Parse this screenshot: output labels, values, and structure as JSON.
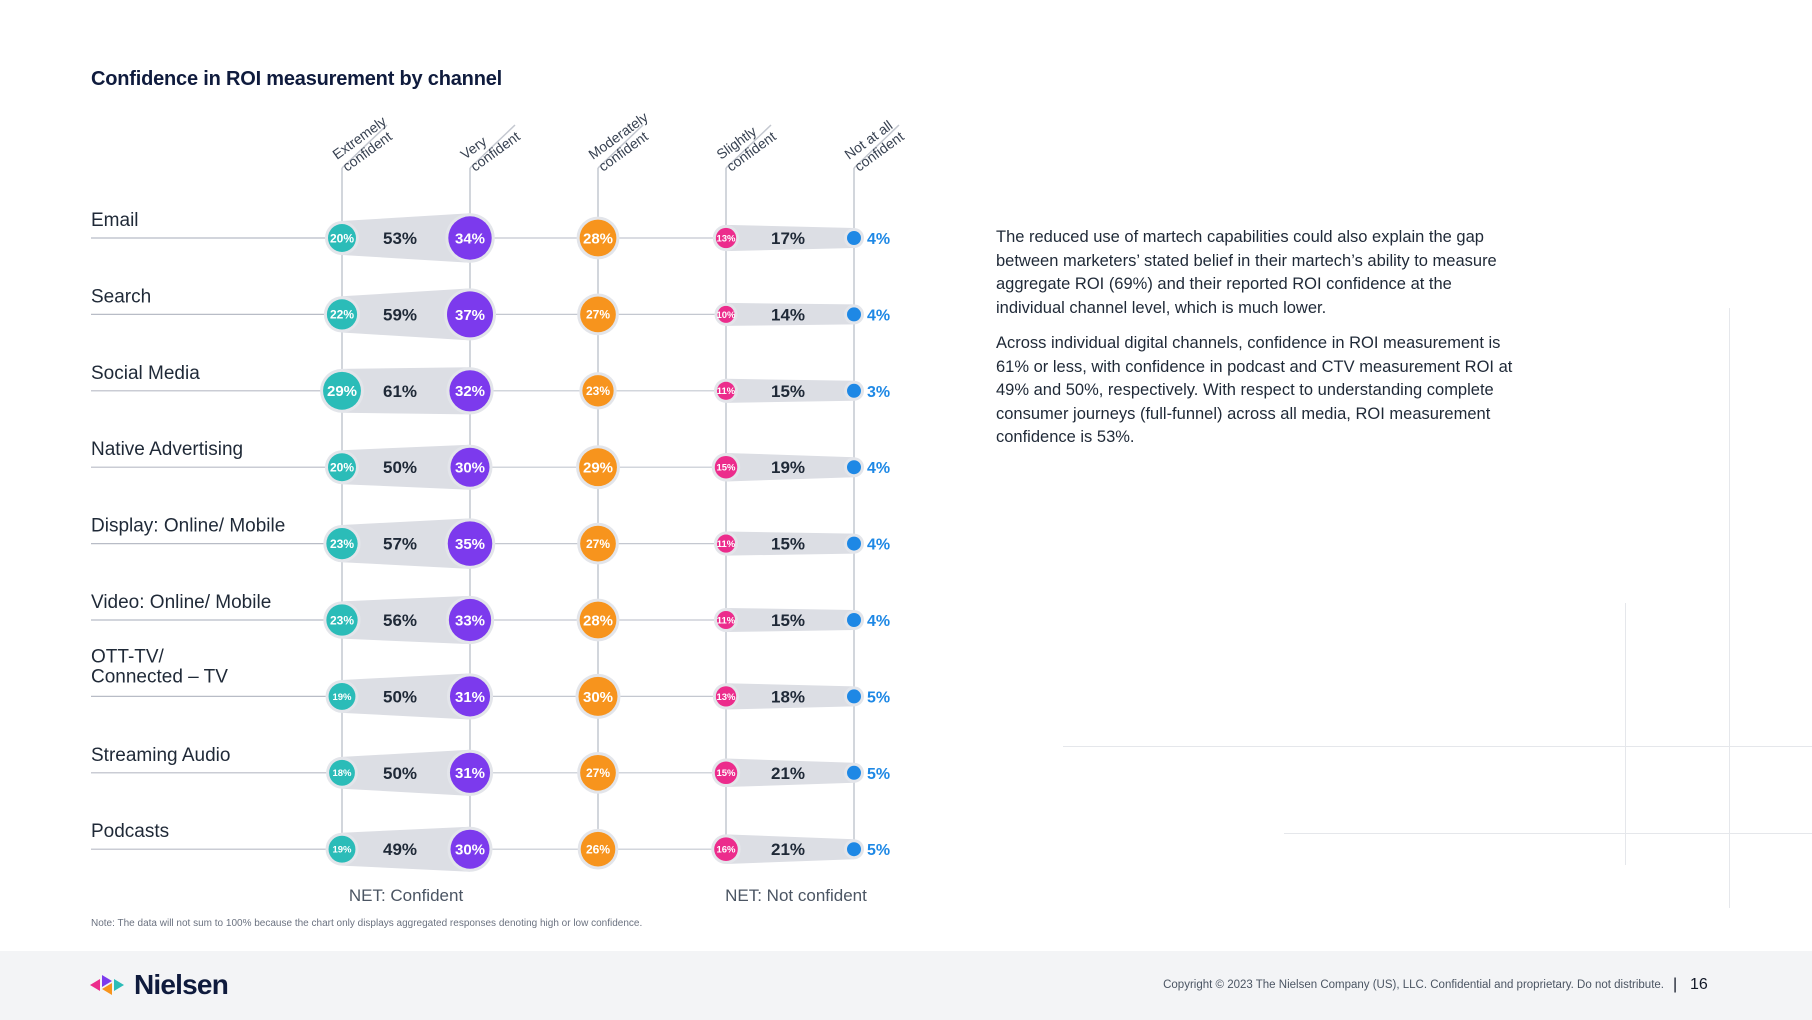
{
  "page": {
    "title": "Confidence in ROI measurement by channel",
    "paragraphs": [
      "The reduced use of martech capabilities could also explain the gap between marketers’ stated belief in their martech’s ability to measure aggregate ROI (69%) and their reported ROI confidence at the individual channel level, which is much lower.",
      "Across individual digital channels, confidence in ROI measurement is 61% or less, with confidence in podcast and CTV measurement ROI at 49% and 50%, respectively. With respect to understanding complete consumer journeys (full-funnel) across all media, ROI measurement confidence is 53%."
    ],
    "note": "Note: The data will not sum to 100% because the chart only displays aggregated responses denoting high or low confidence.",
    "footer": {
      "logo_text": "Nielsen",
      "copyright": "Copyright © 2023 The Nielsen Company (US), LLC. Confidential and proprietary. Do not distribute.",
      "divider": "|",
      "page_number": "16"
    }
  },
  "chart_data": {
    "type": "dot_plot",
    "title": "Confidence in ROI measurement by channel",
    "columns": [
      {
        "key": "extremely",
        "line1": "Extremely",
        "line2": "confident",
        "color": "#2bbcb8"
      },
      {
        "key": "very",
        "line1": "Very",
        "line2": "confident",
        "color": "#7c3aed"
      },
      {
        "key": "moderately",
        "line1": "Moderately",
        "line2": "confident",
        "color": "#f7941d"
      },
      {
        "key": "slightly",
        "line1": "Slightly",
        "line2": "confident",
        "color": "#ec2c8c"
      },
      {
        "key": "not_at_all",
        "line1": "Not at all",
        "line2": "confident",
        "color": "#1e88e5"
      }
    ],
    "net_labels": {
      "confident": "NET: Confident",
      "not_confident": "NET: Not confident"
    },
    "rows": [
      {
        "label": [
          "Email"
        ],
        "extremely": "20%",
        "very": "34%",
        "moderately": "28%",
        "slightly": "13%",
        "not_at_all": "4%",
        "net_confident": "53%",
        "net_not_confident": "17%"
      },
      {
        "label": [
          "Search"
        ],
        "extremely": "22%",
        "very": "37%",
        "moderately": "27%",
        "slightly": "10%",
        "not_at_all": "4%",
        "net_confident": "59%",
        "net_not_confident": "14%"
      },
      {
        "label": [
          "Social Media"
        ],
        "extremely": "29%",
        "very": "32%",
        "moderately": "23%",
        "slightly": "11%",
        "not_at_all": "3%",
        "net_confident": "61%",
        "net_not_confident": "15%"
      },
      {
        "label": [
          "Native Advertising"
        ],
        "extremely": "20%",
        "very": "30%",
        "moderately": "29%",
        "slightly": "15%",
        "not_at_all": "4%",
        "net_confident": "50%",
        "net_not_confident": "19%"
      },
      {
        "label": [
          "Display: Online/ Mobile"
        ],
        "extremely": "23%",
        "very": "35%",
        "moderately": "27%",
        "slightly": "11%",
        "not_at_all": "4%",
        "net_confident": "57%",
        "net_not_confident": "15%"
      },
      {
        "label": [
          "Video: Online/ Mobile"
        ],
        "extremely": "23%",
        "very": "33%",
        "moderately": "28%",
        "slightly": "11%",
        "not_at_all": "4%",
        "net_confident": "56%",
        "net_not_confident": "15%"
      },
      {
        "label": [
          "OTT-TV/",
          "Connected – TV"
        ],
        "extremely": "19%",
        "very": "31%",
        "moderately": "30%",
        "slightly": "13%",
        "not_at_all": "5%",
        "net_confident": "50%",
        "net_not_confident": "18%"
      },
      {
        "label": [
          "Streaming Audio"
        ],
        "extremely": "18%",
        "very": "31%",
        "moderately": "27%",
        "slightly": "15%",
        "not_at_all": "5%",
        "net_confident": "50%",
        "net_not_confident": "21%"
      },
      {
        "label": [
          "Podcasts"
        ],
        "extremely": "19%",
        "very": "30%",
        "moderately": "26%",
        "slightly": "16%",
        "not_at_all": "5%",
        "net_confident": "49%",
        "net_not_confident": "21%"
      }
    ]
  }
}
